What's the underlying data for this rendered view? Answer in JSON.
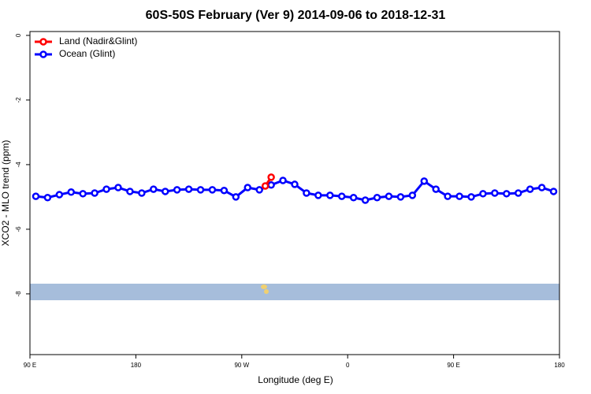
{
  "chart_data": {
    "type": "line",
    "title": "60S-50S February (Ver 9)   2014-09-06 to 2018-12-31",
    "xlabel": "Longitude (deg E)",
    "ylabel": "XCO2 - MLO trend (ppm)",
    "xlim": [
      90,
      540
    ],
    "ylim": [
      -9.88,
      0.12
    ],
    "xticks": [
      {
        "value": 90,
        "label": "90 E"
      },
      180,
      {
        "value": 270,
        "label": "90 W"
      },
      {
        "value": 360,
        "label": "0"
      },
      {
        "value": 450,
        "label": "90 E"
      },
      {
        "value": 540,
        "label": "180"
      }
    ],
    "yticks": [
      0,
      -2,
      -4,
      -6,
      -8
    ],
    "legend": "top-left",
    "series": [
      {
        "name": "Land (Nadir&Glint)",
        "color": "#ff0000",
        "x": [
          290,
          295
        ],
        "values": [
          -4.66,
          -4.39
        ]
      },
      {
        "name": "Ocean (Glint)",
        "color": "#0000ff",
        "x": [
          95,
          105,
          115,
          125,
          135,
          145,
          155,
          165,
          175,
          185,
          195,
          205,
          215,
          225,
          235,
          245,
          255,
          265,
          275,
          285,
          295,
          305,
          315,
          325,
          335,
          345,
          355,
          365,
          375,
          385,
          395,
          405,
          415,
          425,
          435,
          445,
          455,
          465,
          475,
          485,
          495,
          505,
          515,
          525,
          535
        ],
        "values": [
          -4.98,
          -5.02,
          -4.93,
          -4.85,
          -4.9,
          -4.88,
          -4.76,
          -4.71,
          -4.83,
          -4.88,
          -4.76,
          -4.83,
          -4.78,
          -4.76,
          -4.78,
          -4.78,
          -4.8,
          -5.0,
          -4.71,
          -4.78,
          -4.63,
          -4.49,
          -4.61,
          -4.88,
          -4.95,
          -4.95,
          -4.98,
          -5.02,
          -5.1,
          -5.02,
          -4.98,
          -5.0,
          -4.95,
          -4.51,
          -4.76,
          -4.98,
          -4.98,
          -5.0,
          -4.9,
          -4.88,
          -4.9,
          -4.88,
          -4.76,
          -4.71,
          -4.83
        ]
      }
    ]
  }
}
